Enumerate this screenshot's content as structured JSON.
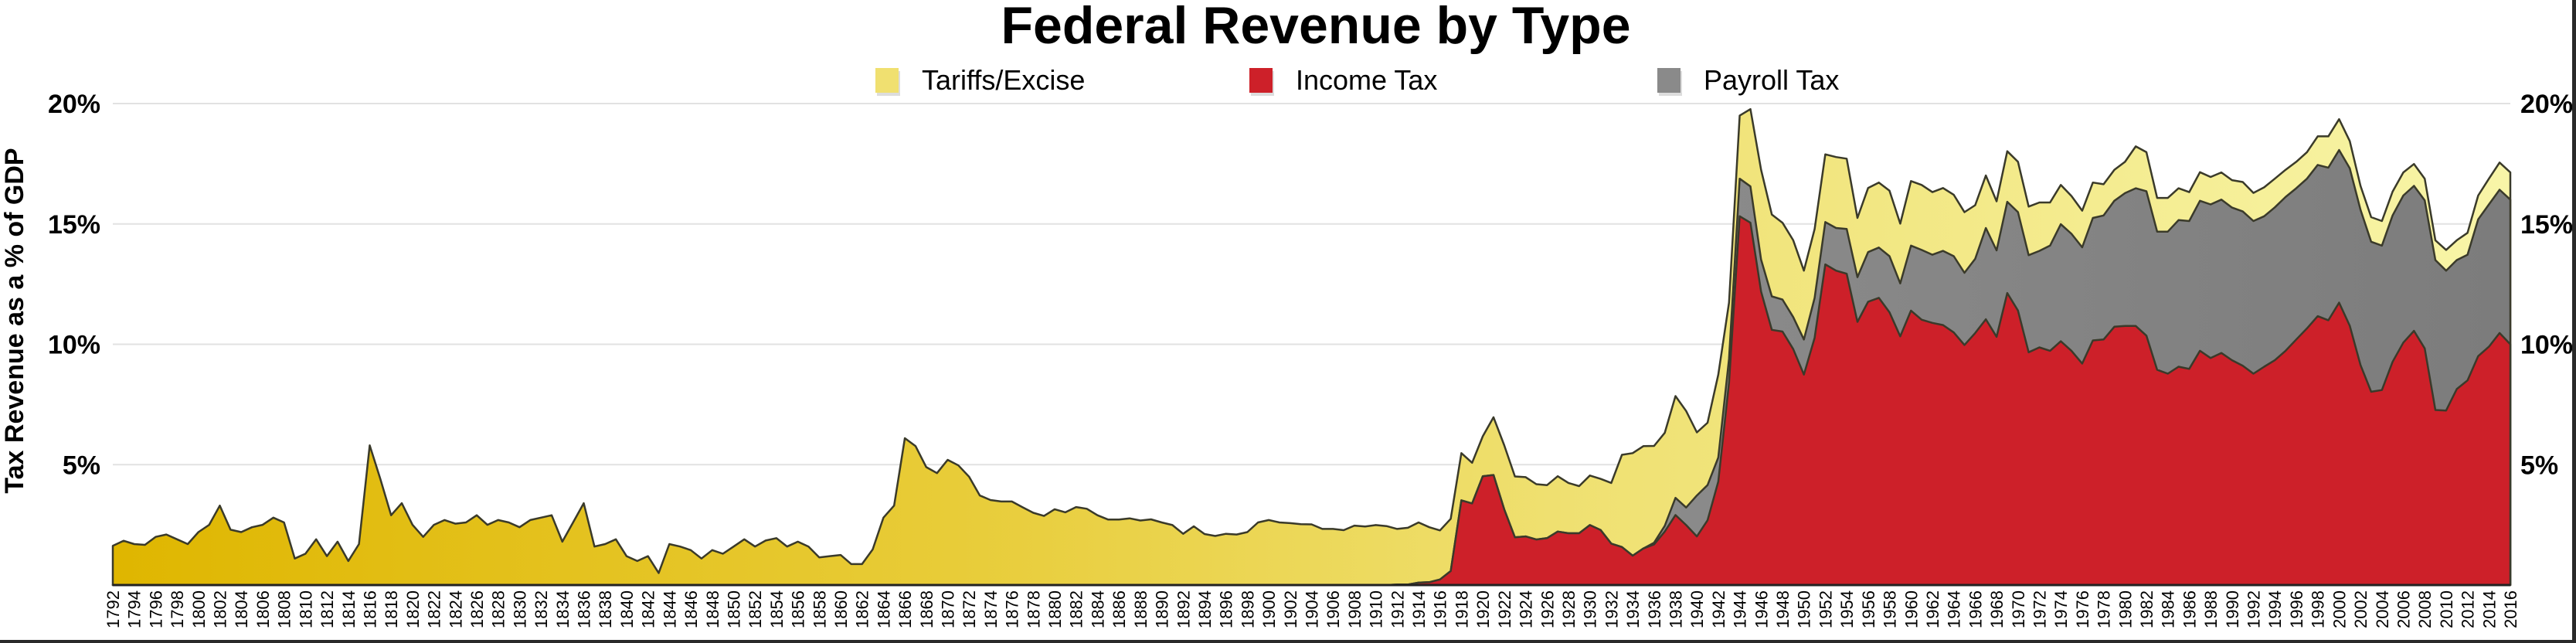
{
  "chart_data": {
    "type": "area",
    "stacked": true,
    "title": "Federal Revenue by Type",
    "ylabel": "Tax Revenue as a % of GDP",
    "xlabel": "",
    "x_range": [
      1792,
      2016
    ],
    "x_tick_step": 2,
    "ylim": [
      0,
      20
    ],
    "y_ticks": [
      5,
      10,
      15,
      20
    ],
    "y_tick_labels": [
      "5%",
      "10%",
      "15%",
      "20%"
    ],
    "grid": true,
    "legend_position": "top-center",
    "series": [
      {
        "name": "Tariffs/Excise",
        "color": "#f0e070",
        "start_year": 1792,
        "values": [
          1.63,
          1.84,
          1.7,
          1.67,
          2.0,
          2.1,
          1.9,
          1.7,
          2.2,
          2.5,
          3.3,
          2.3,
          2.2,
          2.4,
          2.5,
          2.8,
          2.6,
          1.1,
          1.3,
          1.9,
          1.2,
          1.8,
          1.0,
          1.7,
          5.8,
          4.4,
          2.9,
          3.4,
          2.5,
          2.0,
          2.5,
          2.7,
          2.55,
          2.6,
          2.9,
          2.5,
          2.7,
          2.6,
          2.4,
          2.7,
          2.8,
          2.9,
          1.8,
          2.6,
          3.4,
          1.6,
          1.7,
          1.9,
          1.2,
          1.0,
          1.2,
          0.5,
          1.7,
          1.6,
          1.45,
          1.1,
          1.45,
          1.3,
          1.6,
          1.9,
          1.6,
          1.85,
          1.95,
          1.6,
          1.8,
          1.6,
          1.15,
          1.2,
          1.25,
          0.87,
          0.87,
          1.48,
          2.8,
          3.3,
          6.1,
          5.77,
          4.9,
          4.65,
          5.2,
          4.97,
          4.5,
          3.72,
          3.53,
          3.47,
          3.47,
          3.23,
          3.0,
          2.87,
          3.15,
          3.02,
          3.24,
          3.17,
          2.9,
          2.72,
          2.72,
          2.77,
          2.68,
          2.73,
          2.6,
          2.49,
          2.13,
          2.44,
          2.12,
          2.04,
          2.13,
          2.1,
          2.2,
          2.6,
          2.7,
          2.6,
          2.57,
          2.53,
          2.52,
          2.33,
          2.33,
          2.28,
          2.47,
          2.43,
          2.49,
          2.45,
          2.31,
          2.36,
          2.5,
          2.28,
          2.04,
          2.17,
          1.96,
          1.69,
          1.66,
          2.4,
          2.66,
          2.53,
          2.46,
          2.3,
          2.2,
          2.3,
          2.09,
          1.96,
          2.06,
          2.12,
          2.52,
          3.83,
          4.26,
          4.25,
          4.02,
          3.86,
          4.23,
          4.01,
          2.62,
          2.59,
          3.44,
          2.33,
          2.62,
          3.21,
          3.73,
          3.4,
          3.19,
          3.19,
          2.86,
          2.86,
          2.81,
          2.95,
          2.92,
          2.46,
          2.66,
          2.7,
          2.72,
          2.48,
          2.68,
          2.7,
          2.6,
          2.61,
          2.55,
          2.52,
          2.23,
          2.18,
          2.04,
          2.1,
          2.09,
          2.02,
          2.01,
          1.79,
          1.63,
          1.57,
          1.52,
          1.47,
          1.3,
          1.29,
          1.3,
          1.74,
          1.62,
          1.4,
          1.4,
          1.32,
          1.2,
          1.19,
          1.14,
          1.13,
          1.14,
          1.22,
          1.17,
          1.2,
          1.19,
          1.13,
          1.1,
          1.1,
          1.19,
          1.3,
          1.28,
          1.13,
          0.99,
          1.02,
          1.02,
          0.99,
          0.96,
          0.91,
          0.9,
          0.82,
          0.86,
          0.82,
          0.91,
          0.99,
          1.07,
          1.13,
          1.13
        ]
      },
      {
        "name": "Income Tax",
        "color": "#cd2029",
        "start_year": 1912,
        "values": [
          0.02,
          0.02,
          0.1,
          0.12,
          0.23,
          0.58,
          3.52,
          3.39,
          4.52,
          4.57,
          3.15,
          1.98,
          2.02,
          1.89,
          1.95,
          2.22,
          2.15,
          2.15,
          2.49,
          2.29,
          1.72,
          1.58,
          1.22,
          1.52,
          1.69,
          2.22,
          2.91,
          2.49,
          2.02,
          2.69,
          4.3,
          8.4,
          15.32,
          15.05,
          12.19,
          10.6,
          10.53,
          9.8,
          8.74,
          10.27,
          13.32,
          13.06,
          12.93,
          10.93,
          11.77,
          11.93,
          11.33,
          10.33,
          11.4,
          11.02,
          10.89,
          10.8,
          10.49,
          9.97,
          10.47,
          11.04,
          10.31,
          12.13,
          11.4,
          9.67,
          9.87,
          9.73,
          10.13,
          9.73,
          9.2,
          10.16,
          10.2,
          10.73,
          10.76,
          10.76,
          10.36,
          8.94,
          8.78,
          9.07,
          8.98,
          9.73,
          9.43,
          9.64,
          9.34,
          9.11,
          8.78,
          9.07,
          9.34,
          9.73,
          10.2,
          10.66,
          11.17,
          11.0,
          11.73,
          10.77,
          9.14,
          8.03,
          8.1,
          9.27,
          10.07,
          10.56,
          9.83,
          7.27,
          7.25,
          8.14,
          8.5,
          9.51,
          9.9,
          10.47,
          10.0
        ]
      },
      {
        "name": "Payroll Tax",
        "color": "#8a8a8a",
        "start_year": 1936,
        "values": [
          0.07,
          0.24,
          0.71,
          0.73,
          1.7,
          1.46,
          1.0,
          1.0,
          1.56,
          1.51,
          1.33,
          1.39,
          1.33,
          1.33,
          1.46,
          1.66,
          1.76,
          1.77,
          1.86,
          1.86,
          2.06,
          2.09,
          2.33,
          2.2,
          2.7,
          2.9,
          2.83,
          3.08,
          3.17,
          3.0,
          3.08,
          3.79,
          3.59,
          3.79,
          4.09,
          4.03,
          4.01,
          4.37,
          4.86,
          4.86,
          4.83,
          5.09,
          5.15,
          5.23,
          5.52,
          5.72,
          6.0,
          5.74,
          5.9,
          6.09,
          6.14,
          6.23,
          6.38,
          6.37,
          6.34,
          6.41,
          6.34,
          6.25,
          6.35,
          6.39,
          6.28,
          6.22,
          6.28,
          6.34,
          6.34,
          6.54,
          6.45,
          6.23,
          6.0,
          6.08,
          6.11,
          6.02,
          6.15,
          6.23,
          5.81,
          5.36,
          5.22,
          5.68,
          5.91,
          5.95,
          6.01
        ]
      }
    ]
  }
}
